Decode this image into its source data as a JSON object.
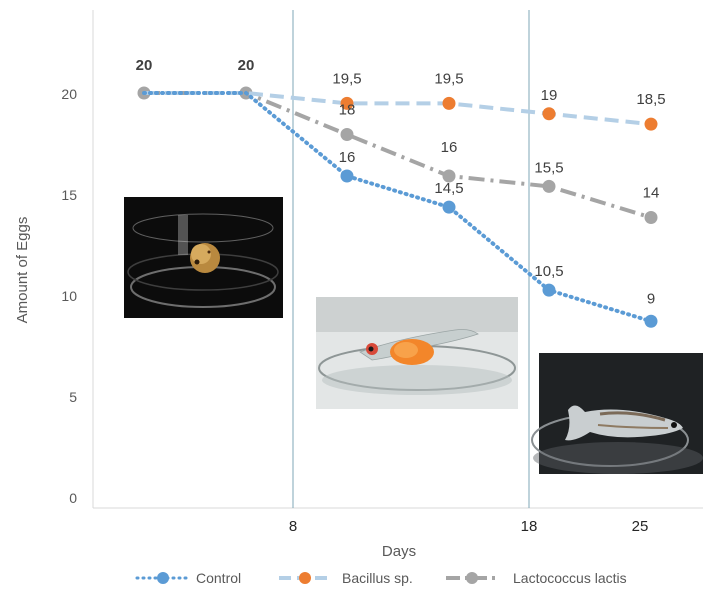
{
  "chart_data": {
    "type": "line",
    "title": "",
    "xlabel": "Days",
    "ylabel": "Amount of Eggs",
    "x_ticks": [
      "8",
      "18",
      "25"
    ],
    "y_ticks": [
      "0",
      "5",
      "10",
      "15",
      "20"
    ],
    "ylim": [
      0,
      24
    ],
    "grid": false,
    "legend_position": "bottom",
    "series": [
      {
        "name": "Control",
        "color": "#5b9bd5",
        "style": "dotted",
        "values": [
          20,
          20,
          16,
          14.5,
          10.5,
          9
        ],
        "labels": [
          "",
          "",
          "16",
          "14,5",
          "10,5",
          "9"
        ]
      },
      {
        "name": "Bacillus sp.",
        "color": "#ed7d31",
        "line_color": "#b4cfe6",
        "style": "dashed",
        "values": [
          20,
          20,
          19.5,
          19.5,
          19,
          18.5
        ],
        "labels": [
          "20",
          "20",
          "19,5",
          "19,5",
          "19",
          "18,5"
        ]
      },
      {
        "name": "Lactococcus lactis",
        "color": "#a5a5a5",
        "style": "dash-dot",
        "values": [
          20,
          20,
          18,
          16,
          15.5,
          14
        ],
        "labels": [
          "",
          "",
          "18",
          "16",
          "15,5",
          "14"
        ]
      }
    ]
  },
  "photos": [
    {
      "name": "egg-photo",
      "subject": "fish egg in glass dish"
    },
    {
      "name": "larva-photo",
      "subject": "larva with yolk sac in glass dish"
    },
    {
      "name": "fry-photo",
      "subject": "juvenile fish in glass dish"
    }
  ]
}
